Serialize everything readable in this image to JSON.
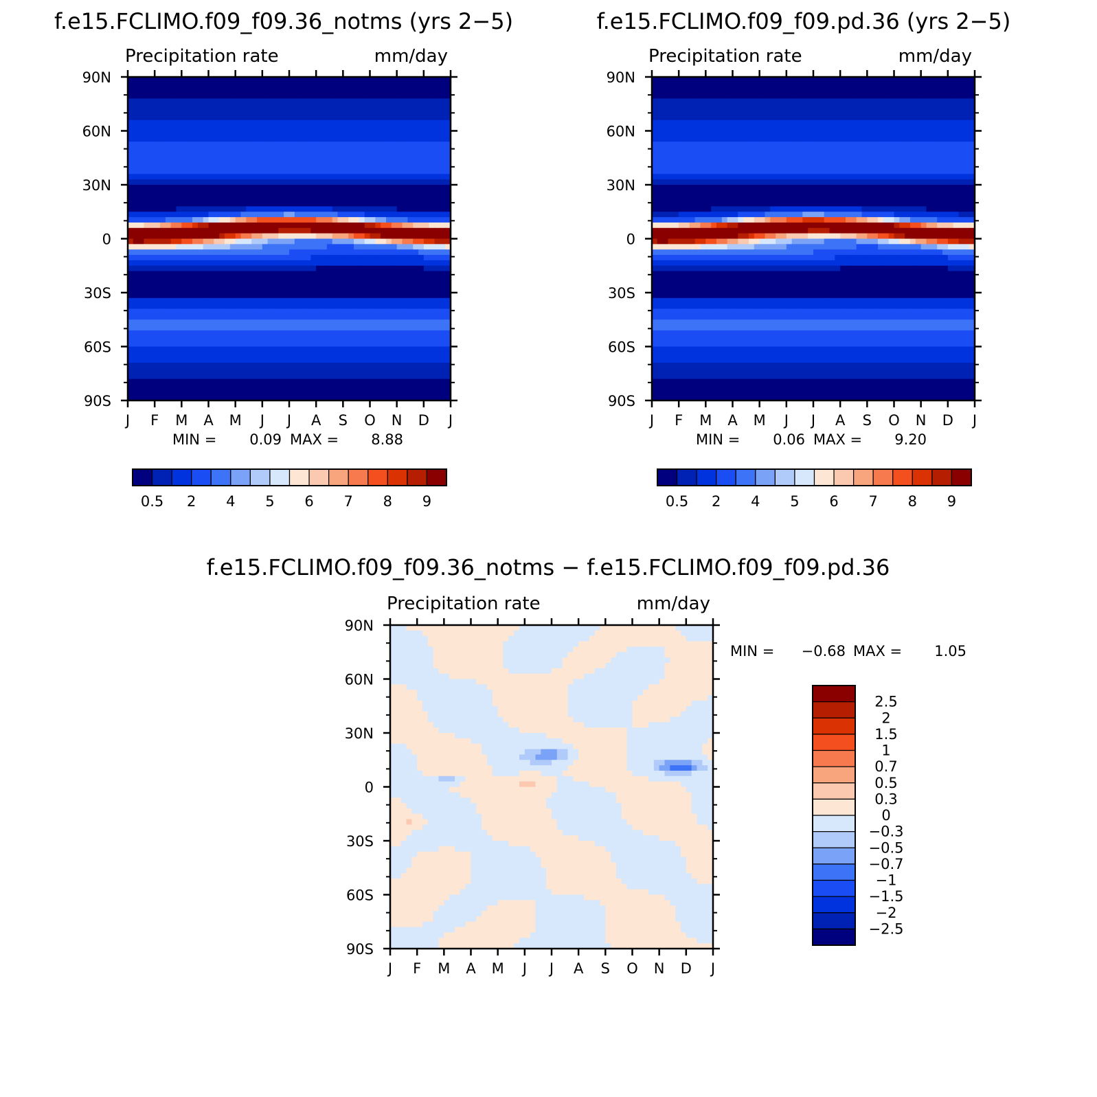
{
  "chart_data": [
    {
      "id": "notms",
      "type": "heatmap",
      "title": "f.e15.FCLIMO.f09_f09.36_notms (yrs 2−5)",
      "left_label": "Precipitation rate",
      "right_label": "mm/day",
      "x_tick_labels": [
        "J",
        "F",
        "M",
        "A",
        "M",
        "J",
        "J",
        "A",
        "S",
        "O",
        "N",
        "D",
        "J"
      ],
      "y_tick_labels": [
        "90N",
        "60N",
        "30N",
        "0",
        "30S",
        "60S",
        "90S"
      ],
      "ylim": [
        -90,
        90
      ],
      "stats": {
        "min_label": "MIN =",
        "min": "0.09",
        "max_label": "MAX =",
        "max": "8.88"
      },
      "colorbar_labels": [
        "0.5",
        "2",
        "4",
        "5",
        "6",
        "7",
        "8",
        "9"
      ],
      "colorbar_colors": [
        "#00007f",
        "#0022b4",
        "#0033dd",
        "#1a4ef4",
        "#3d73f6",
        "#7aa3f7",
        "#b0cafa",
        "#d7e8fc",
        "#fde6d4",
        "#fbc8b0",
        "#f8a47c",
        "#f67a4e",
        "#f44f1f",
        "#db3204",
        "#b51e00",
        "#8a0000"
      ],
      "levels": [
        0.5,
        1,
        2,
        3,
        4,
        4.5,
        5,
        5.5,
        6,
        6.5,
        7,
        7.5,
        8,
        8.5,
        9
      ],
      "data_description": "zonal-mean precipitation by month; ITCZ maximum near 5-10N"
    },
    {
      "id": "pd",
      "type": "heatmap",
      "title": "f.e15.FCLIMO.f09_f09.pd.36 (yrs 2−5)",
      "left_label": "Precipitation rate",
      "right_label": "mm/day",
      "x_tick_labels": [
        "J",
        "F",
        "M",
        "A",
        "M",
        "J",
        "J",
        "A",
        "S",
        "O",
        "N",
        "D",
        "J"
      ],
      "y_tick_labels": [
        "90N",
        "60N",
        "30N",
        "0",
        "30S",
        "60S",
        "90S"
      ],
      "ylim": [
        -90,
        90
      ],
      "stats": {
        "min_label": "MIN =",
        "min": "0.06",
        "max_label": "MAX =",
        "max": "9.20"
      },
      "colorbar_labels": [
        "0.5",
        "2",
        "4",
        "5",
        "6",
        "7",
        "8",
        "9"
      ],
      "colorbar_colors": [
        "#00007f",
        "#0022b4",
        "#0033dd",
        "#1a4ef4",
        "#3d73f6",
        "#7aa3f7",
        "#b0cafa",
        "#d7e8fc",
        "#fde6d4",
        "#fbc8b0",
        "#f8a47c",
        "#f67a4e",
        "#f44f1f",
        "#db3204",
        "#b51e00",
        "#8a0000"
      ],
      "levels": [
        0.5,
        1,
        2,
        3,
        4,
        4.5,
        5,
        5.5,
        6,
        6.5,
        7,
        7.5,
        8,
        8.5,
        9
      ]
    },
    {
      "id": "diff",
      "type": "heatmap",
      "title": "f.e15.FCLIMO.f09_f09.36_notms − f.e15.FCLIMO.f09_f09.pd.36",
      "left_label": "Precipitation rate",
      "right_label": "mm/day",
      "x_tick_labels": [
        "J",
        "F",
        "M",
        "A",
        "M",
        "J",
        "J",
        "A",
        "S",
        "O",
        "N",
        "D",
        "J"
      ],
      "y_tick_labels": [
        "90N",
        "60N",
        "30N",
        "0",
        "30S",
        "60S",
        "90S"
      ],
      "ylim": [
        -90,
        90
      ],
      "stats": {
        "min_label": "MIN =",
        "min": "−0.68",
        "max_label": "MAX =",
        "max": "1.05"
      },
      "colorbar_labels": [
        "2.5",
        "2",
        "1.5",
        "1",
        "0.7",
        "0.5",
        "0.3",
        "0",
        "−0.3",
        "−0.5",
        "−0.7",
        "−1",
        "−1.5",
        "−2",
        "−2.5"
      ],
      "colorbar_colors": [
        "#8a0000",
        "#b51e00",
        "#db3204",
        "#f44f1f",
        "#f67a4e",
        "#f8a47c",
        "#fbc8b0",
        "#fde6d4",
        "#d7e8fc",
        "#b0cafa",
        "#7aa3f7",
        "#3d73f6",
        "#1a4ef4",
        "#0033dd",
        "#0022b4",
        "#00007f"
      ],
      "levels": [
        -2.5,
        -2,
        -1.5,
        -1,
        -0.7,
        -0.5,
        -0.3,
        0,
        0.3,
        0.5,
        0.7,
        1,
        1.5,
        2,
        2.5
      ]
    }
  ]
}
